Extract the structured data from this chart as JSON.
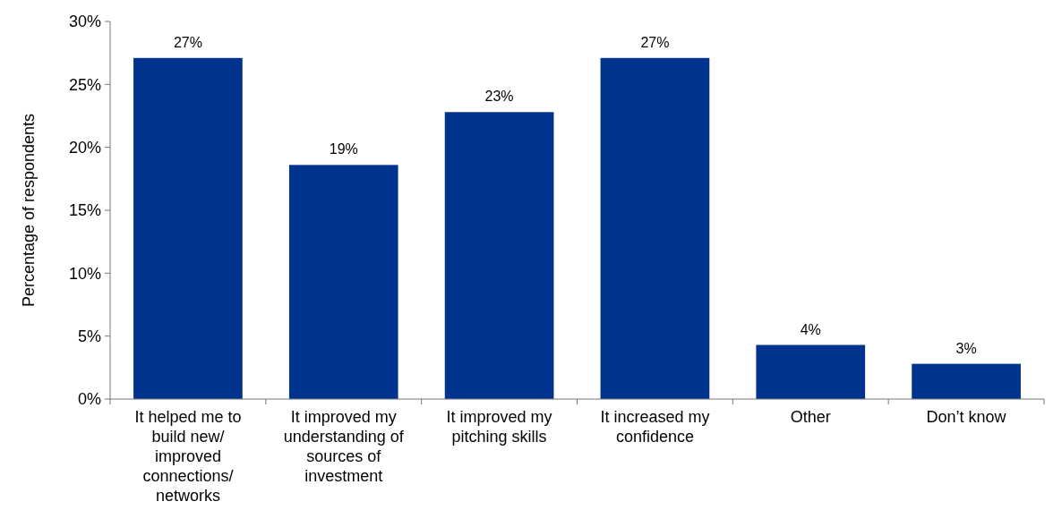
{
  "chart_data": {
    "type": "bar",
    "ylabel": "Percentage of respondents",
    "categories": [
      "It helped me to build new/ improved connections/ networks",
      "It improved my understanding of sources of investment",
      "It improved my pitching skills",
      "It increased my confidence",
      "Other",
      "Don’t know"
    ],
    "values": [
      27.1,
      18.6,
      22.8,
      27.1,
      4.3,
      2.8
    ],
    "value_labels": [
      "27%",
      "19%",
      "23%",
      "27%",
      "4%",
      "3%"
    ],
    "color": "#00338d",
    "ylim": [
      0,
      30
    ],
    "yticks": [
      {
        "value": 0,
        "label": "0%"
      },
      {
        "value": 5,
        "label": "5%"
      },
      {
        "value": 10,
        "label": "10%"
      },
      {
        "value": 15,
        "label": "15%"
      },
      {
        "value": 20,
        "label": "20%"
      },
      {
        "value": 25,
        "label": "25%"
      },
      {
        "value": 30,
        "label": "30%"
      }
    ],
    "grid": false
  }
}
